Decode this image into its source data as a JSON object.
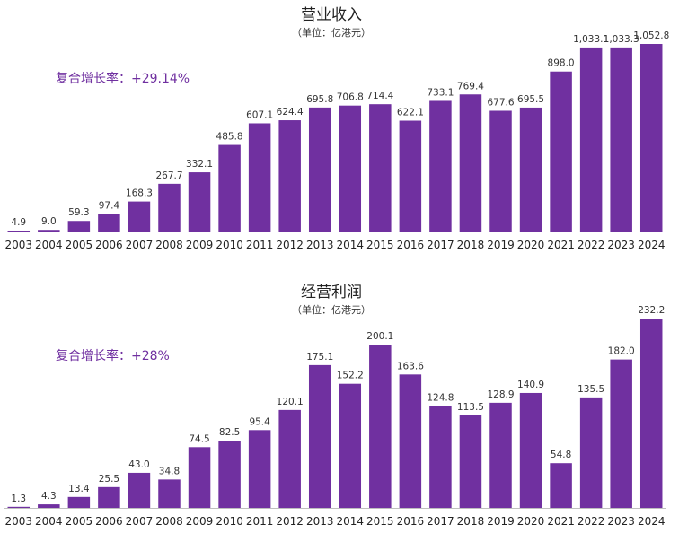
{
  "colors": {
    "bar": "#7030A0",
    "cagr_text": "#7030A0",
    "axis": "#bfbfbf"
  },
  "chart_data": [
    {
      "type": "bar",
      "title": "营业收入",
      "subtitle": "（单位：亿港元）",
      "cagr_label": "复合增长率：",
      "cagr_value": "+29.14%",
      "categories": [
        "2003",
        "2004",
        "2005",
        "2006",
        "2007",
        "2008",
        "2009",
        "2010",
        "2011",
        "2012",
        "2013",
        "2014",
        "2015",
        "2016",
        "2017",
        "2018",
        "2019",
        "2020",
        "2021",
        "2022",
        "2023",
        "2024"
      ],
      "values": [
        4.9,
        9.0,
        59.3,
        97.4,
        168.3,
        267.7,
        332.1,
        485.8,
        607.1,
        624.4,
        695.8,
        706.8,
        714.4,
        622.1,
        733.1,
        769.4,
        677.6,
        695.5,
        898.0,
        1033.1,
        1033.3,
        1052.8
      ],
      "value_labels": [
        "4.9",
        "9.0",
        "59.3",
        "97.4",
        "168.3",
        "267.7",
        "332.1",
        "485.8",
        "607.1",
        "624.4",
        "695.8",
        "706.8",
        "714.4",
        "622.1",
        "733.1",
        "769.4",
        "677.6",
        "695.5",
        "898.0",
        "1,033.1",
        "1,033.3",
        "1,052.8"
      ],
      "xlabel": "",
      "ylabel": "",
      "ylim": [
        0,
        1052.8
      ]
    },
    {
      "type": "bar",
      "title": "经营利润",
      "subtitle": "（单位：亿港元）",
      "cagr_label": "复合增长率：",
      "cagr_value": "+28%",
      "categories": [
        "2003",
        "2004",
        "2005",
        "2006",
        "2007",
        "2008",
        "2009",
        "2010",
        "2011",
        "2012",
        "2013",
        "2014",
        "2015",
        "2016",
        "2017",
        "2018",
        "2019",
        "2020",
        "2021",
        "2022",
        "2023",
        "2024"
      ],
      "values": [
        1.3,
        4.3,
        13.4,
        25.5,
        43.0,
        34.8,
        74.5,
        82.5,
        95.4,
        120.1,
        175.1,
        152.2,
        200.1,
        163.6,
        124.8,
        113.5,
        128.9,
        140.9,
        54.8,
        135.5,
        182.0,
        232.2
      ],
      "value_labels": [
        "1.3",
        "4.3",
        "13.4",
        "25.5",
        "43.0",
        "34.8",
        "74.5",
        "82.5",
        "95.4",
        "120.1",
        "175.1",
        "152.2",
        "200.1",
        "163.6",
        "124.8",
        "113.5",
        "128.9",
        "140.9",
        "54.8",
        "135.5",
        "182.0",
        "232.2"
      ],
      "xlabel": "",
      "ylabel": "",
      "ylim": [
        0,
        232.2
      ]
    }
  ]
}
